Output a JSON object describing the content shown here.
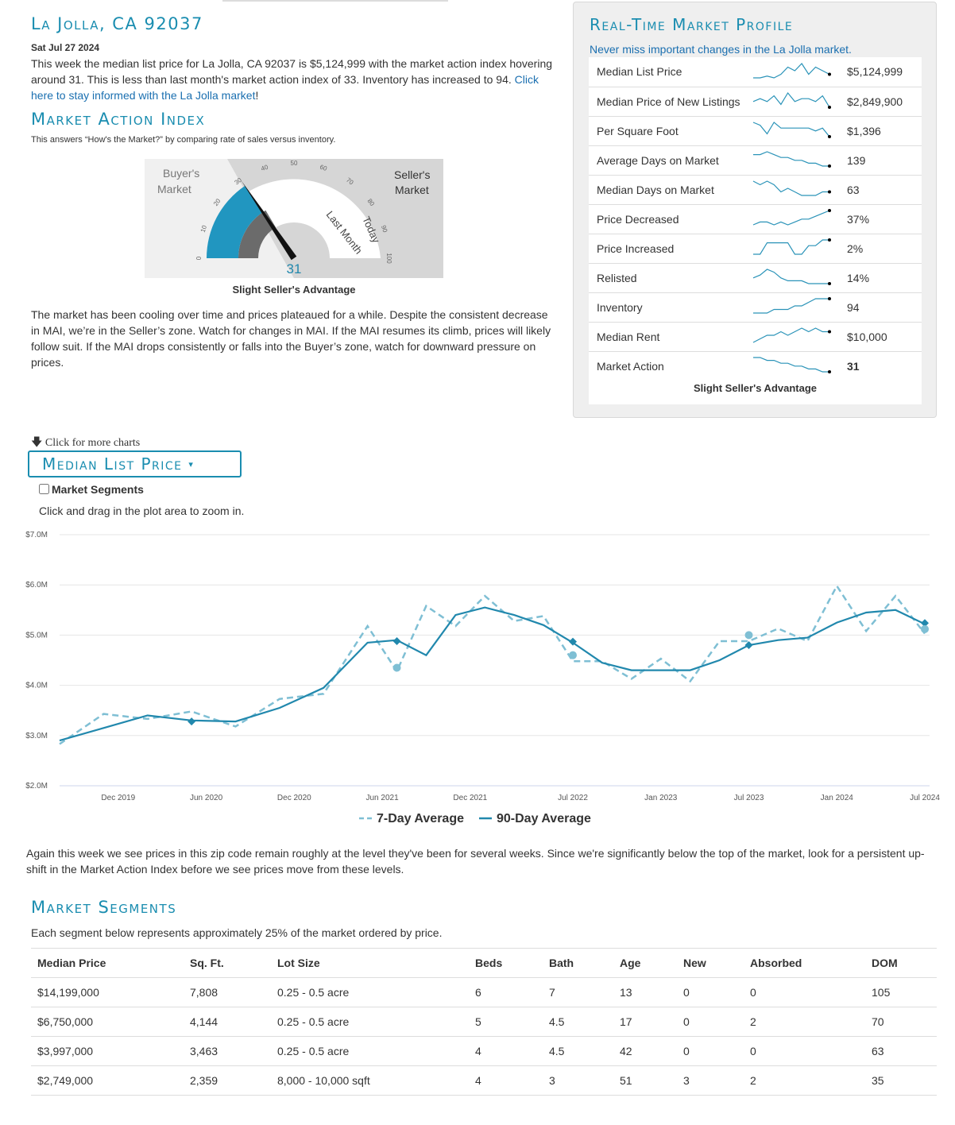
{
  "header": {
    "city_title": "La Jolla, CA 92037",
    "date": "Sat Jul 27 2024",
    "summary": "This week the median list price for La Jolla, CA 92037 is $5,124,999 with the market action index hovering around 31. This is less than last month's market action index of 33. Inventory has increased to 94.",
    "stay_informed_link": "Click here to stay informed with the La Jolla market",
    "stay_informed_suffix": "!"
  },
  "mai": {
    "title": "Market Action Index",
    "description": "This answers “How's the Market?” by comparing rate of sales versus inventory.",
    "gauge": {
      "buyers_label_1": "Buyer's",
      "buyers_label_2": "Market",
      "sellers_label_1": "Seller's",
      "sellers_label_2": "Market",
      "last_month_label": "Last Month",
      "today_label": "Today",
      "value": 31,
      "last_month_value": 33,
      "ticks": [
        "0",
        "10",
        "20",
        "30",
        "40",
        "50",
        "60",
        "70",
        "80",
        "90",
        "100"
      ]
    },
    "caption": "Slight Seller's Advantage",
    "analysis": "The market has been cooling over time and prices plateaued for a while. Despite the consistent decrease in MAI, we’re in the Seller’s zone. Watch for changes in MAI. If the MAI resumes its climb, prices will likely follow suit. If the MAI drops consistently or falls into the Buyer’s zone, watch for downward pressure on prices."
  },
  "profile": {
    "title": "Real-Time Market Profile",
    "subtitle": "Never miss important changes in the La Jolla market.",
    "rows": [
      {
        "label": "Median List Price",
        "value": "$5,124,999",
        "bold": false,
        "spark": [
          2,
          2,
          2.5,
          2,
          3,
          5,
          4,
          6,
          3,
          5,
          4,
          3
        ]
      },
      {
        "label": "Median Price of New Listings",
        "value": "$2,849,900",
        "bold": false,
        "spark": [
          3,
          4,
          3,
          5,
          2,
          6,
          3,
          4,
          4,
          3,
          5,
          1
        ]
      },
      {
        "label": "Per Square Foot",
        "value": "$1,396",
        "bold": false,
        "spark": [
          6,
          5,
          2,
          6,
          4,
          4,
          4,
          4,
          4,
          3,
          4,
          1
        ]
      },
      {
        "label": "Average Days on Market",
        "value": "139",
        "bold": false,
        "spark": [
          5,
          5,
          6,
          5,
          4,
          4,
          3,
          3,
          2,
          2,
          1,
          1
        ]
      },
      {
        "label": "Median Days on Market",
        "value": "63",
        "bold": false,
        "spark": [
          5,
          4,
          5,
          4,
          2,
          3,
          2,
          1,
          1,
          1,
          2,
          2
        ]
      },
      {
        "label": "Price Decreased",
        "value": "37%",
        "bold": false,
        "spark": [
          1,
          2,
          2,
          1,
          2,
          1,
          2,
          3,
          3,
          4,
          5,
          6
        ]
      },
      {
        "label": "Price Increased",
        "value": "2%",
        "bold": false,
        "spark": [
          1,
          1,
          5,
          5,
          5,
          5,
          1,
          1,
          4,
          4,
          6,
          6
        ]
      },
      {
        "label": "Relisted",
        "value": "14%",
        "bold": false,
        "spark": [
          3,
          4,
          6,
          5,
          3,
          2,
          2,
          2,
          1,
          1,
          1,
          1
        ]
      },
      {
        "label": "Inventory",
        "value": "94",
        "bold": false,
        "spark": [
          1,
          1,
          1,
          2,
          2,
          2,
          3,
          3,
          4,
          5,
          5,
          5
        ]
      },
      {
        "label": "Median Rent",
        "value": "$10,000",
        "bold": false,
        "spark": [
          1,
          2,
          3,
          3,
          4,
          3,
          4,
          5,
          4,
          5,
          4,
          4
        ]
      },
      {
        "label": "Market Action",
        "value": "31",
        "bold": true,
        "spark": [
          6,
          6,
          5,
          5,
          4,
          4,
          3,
          3,
          2,
          2,
          1,
          1
        ]
      }
    ],
    "caption": "Slight Seller's Advantage"
  },
  "chart_controls": {
    "more_charts": "Click for more charts",
    "selector_label": "Median List Price",
    "segments_label": "Market Segments",
    "zoom_hint": "Click and drag in the plot area to zoom in."
  },
  "chart_data": {
    "type": "line",
    "title": "Median List Price",
    "y_unit": "USD (millions)",
    "ylim": [
      2.0,
      7.0
    ],
    "y_ticks": [
      "$2.0M",
      "$3.0M",
      "$4.0M",
      "$5.0M",
      "$6.0M",
      "$7.0M"
    ],
    "x_ticks": [
      "Dec 2019",
      "Jun 2020",
      "Dec 2020",
      "Jun 2021",
      "Dec 2021",
      "Jul 2022",
      "Jan 2023",
      "Jul 2023",
      "Jan 2024",
      "Jul 2024"
    ],
    "x_range": [
      "2019-08",
      "2024-07"
    ],
    "grid": true,
    "legend_position": "bottom",
    "x": [
      "2019-08",
      "2019-11",
      "2020-02",
      "2020-05",
      "2020-08",
      "2020-11",
      "2021-02",
      "2021-05",
      "2021-07",
      "2021-09",
      "2021-11",
      "2022-01",
      "2022-03",
      "2022-05",
      "2022-07",
      "2022-09",
      "2022-11",
      "2023-01",
      "2023-03",
      "2023-05",
      "2023-07",
      "2023-09",
      "2023-11",
      "2024-01",
      "2024-03",
      "2024-05",
      "2024-07"
    ],
    "series": [
      {
        "name": "7-Day Average",
        "style": "dashed",
        "color": "#7fbfd4",
        "values": [
          2.95,
          3.25,
          3.45,
          3.3,
          3.3,
          3.55,
          3.95,
          5.0,
          4.4,
          5.4,
          5.3,
          5.6,
          5.4,
          5.2,
          4.6,
          4.3,
          4.25,
          4.35,
          4.2,
          4.7,
          5.0,
          4.95,
          5.0,
          5.8,
          5.2,
          5.6,
          5.15
        ]
      },
      {
        "name": "90-Day Average",
        "style": "solid",
        "color": "#2188ad",
        "values": [
          2.9,
          3.15,
          3.4,
          3.3,
          3.28,
          3.55,
          3.95,
          4.85,
          4.9,
          4.6,
          5.4,
          5.55,
          5.4,
          5.2,
          4.85,
          4.45,
          4.3,
          4.3,
          4.3,
          4.5,
          4.8,
          4.9,
          4.95,
          5.25,
          5.45,
          5.5,
          5.22
        ]
      }
    ],
    "markers": [
      {
        "date": "2020-05",
        "value": 3.28,
        "shape": "diamond"
      },
      {
        "date": "2021-07",
        "value": 4.88,
        "shape": "diamond"
      },
      {
        "date": "2021-07",
        "value": 4.35,
        "shape": "circle"
      },
      {
        "date": "2022-07",
        "value": 4.87,
        "shape": "diamond"
      },
      {
        "date": "2022-07",
        "value": 4.6,
        "shape": "circle"
      },
      {
        "date": "2023-07",
        "value": 4.8,
        "shape": "diamond"
      },
      {
        "date": "2023-07",
        "value": 5.0,
        "shape": "circle"
      },
      {
        "date": "2024-07",
        "value": 5.24,
        "shape": "diamond"
      },
      {
        "date": "2024-07",
        "value": 5.12,
        "shape": "circle"
      }
    ]
  },
  "chart_comment": "Again this week we see prices in this zip code remain roughly at the level they've been for several weeks. Since we're significantly below the top of the market, look for a persistent up-shift in the Market Action Index before we see prices move from these levels.",
  "segments": {
    "title": "Market Segments",
    "description": "Each segment below represents approximately 25% of the market ordered by price.",
    "columns": [
      "Median Price",
      "Sq. Ft.",
      "Lot Size",
      "Beds",
      "Bath",
      "Age",
      "New",
      "Absorbed",
      "DOM"
    ],
    "rows": [
      [
        "$14,199,000",
        "7,808",
        "0.25 - 0.5 acre",
        "6",
        "7",
        "13",
        "0",
        "0",
        "105"
      ],
      [
        "$6,750,000",
        "4,144",
        "0.25 - 0.5 acre",
        "5",
        "4.5",
        "17",
        "0",
        "2",
        "70"
      ],
      [
        "$3,997,000",
        "3,463",
        "0.25 - 0.5 acre",
        "4",
        "4.5",
        "42",
        "0",
        "0",
        "63"
      ],
      [
        "$2,749,000",
        "2,359",
        "8,000 - 10,000 sqft",
        "4",
        "3",
        "51",
        "3",
        "2",
        "35"
      ]
    ]
  },
  "colors": {
    "accent": "#1a8db0",
    "link": "#1a6fb0",
    "gauge_blue": "#2196c0",
    "gauge_grey": "#6b6b6b"
  }
}
